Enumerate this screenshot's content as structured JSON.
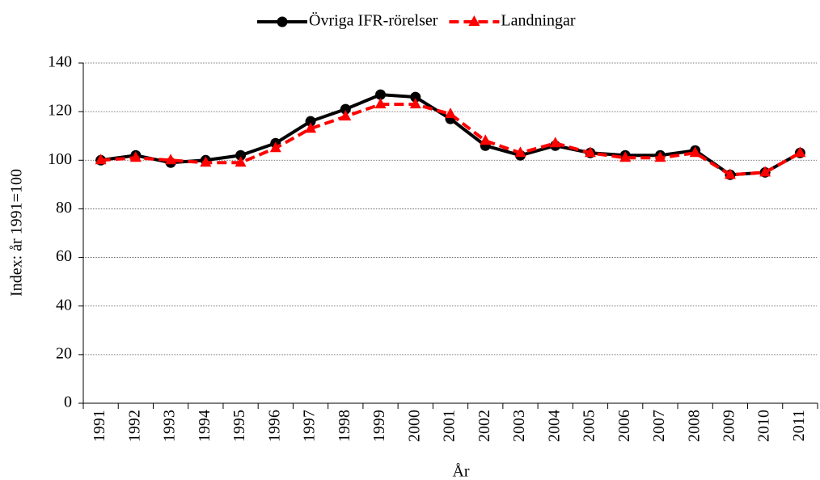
{
  "chart_data": {
    "type": "line",
    "x_label": "År",
    "y_label": "Index: år 1991=100",
    "categories": [
      "1991",
      "1992",
      "1993",
      "1994",
      "1995",
      "1996",
      "1997",
      "1998",
      "1999",
      "2000",
      "2001",
      "2002",
      "2003",
      "2004",
      "2005",
      "2006",
      "2007",
      "2008",
      "2009",
      "2010",
      "2011"
    ],
    "series": [
      {
        "name": "Övriga IFR-rörelser",
        "color": "#000000",
        "marker": "circle",
        "dash": false,
        "values": [
          100,
          102,
          99,
          100,
          102,
          107,
          116,
          121,
          127,
          126,
          117,
          106,
          102,
          106,
          103,
          102,
          102,
          104,
          94,
          95,
          103
        ]
      },
      {
        "name": "Landningar",
        "color": "#ff0000",
        "marker": "triangle",
        "dash": true,
        "values": [
          100,
          101,
          100,
          99,
          99,
          105,
          113,
          118,
          123,
          123,
          119,
          108,
          103,
          107,
          103,
          101,
          101,
          103,
          94,
          95,
          103
        ]
      }
    ],
    "ylim": [
      0,
      140
    ],
    "yticks": [
      0,
      20,
      40,
      60,
      80,
      100,
      120,
      140
    ],
    "grid": true,
    "legend": "top"
  }
}
